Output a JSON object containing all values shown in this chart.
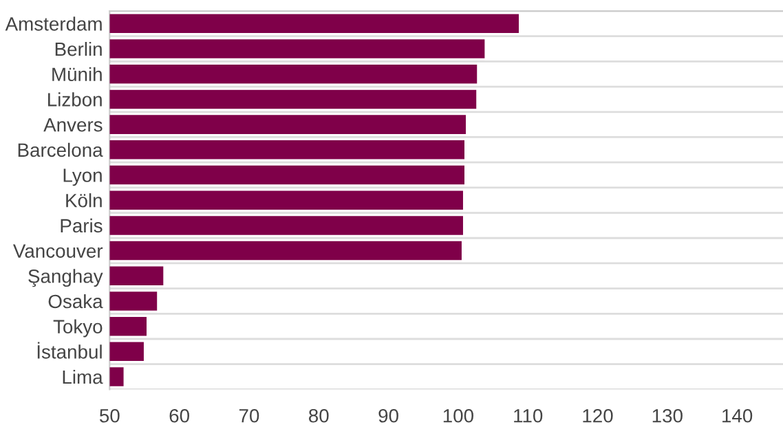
{
  "chart_data": {
    "type": "bar",
    "orientation": "horizontal",
    "categories": [
      "Amsterdam",
      "Berlin",
      "Münih",
      "Lizbon",
      "Anvers",
      "Barcelona",
      "Lyon",
      "Köln",
      "Paris",
      "Vancouver",
      "Şanghay",
      "Osaka",
      "Tokyo",
      "İstanbul",
      "Lima"
    ],
    "values": [
      108.7,
      103.8,
      102.7,
      102.6,
      101.1,
      100.9,
      100.9,
      100.7,
      100.7,
      100.5,
      57.7,
      56.8,
      55.3,
      54.9,
      52.0
    ],
    "color": "#7f0049",
    "xlim": [
      50,
      146.6
    ],
    "xticks": [
      50,
      60,
      70,
      80,
      90,
      100,
      110,
      120,
      130,
      140
    ],
    "grid": "y"
  }
}
